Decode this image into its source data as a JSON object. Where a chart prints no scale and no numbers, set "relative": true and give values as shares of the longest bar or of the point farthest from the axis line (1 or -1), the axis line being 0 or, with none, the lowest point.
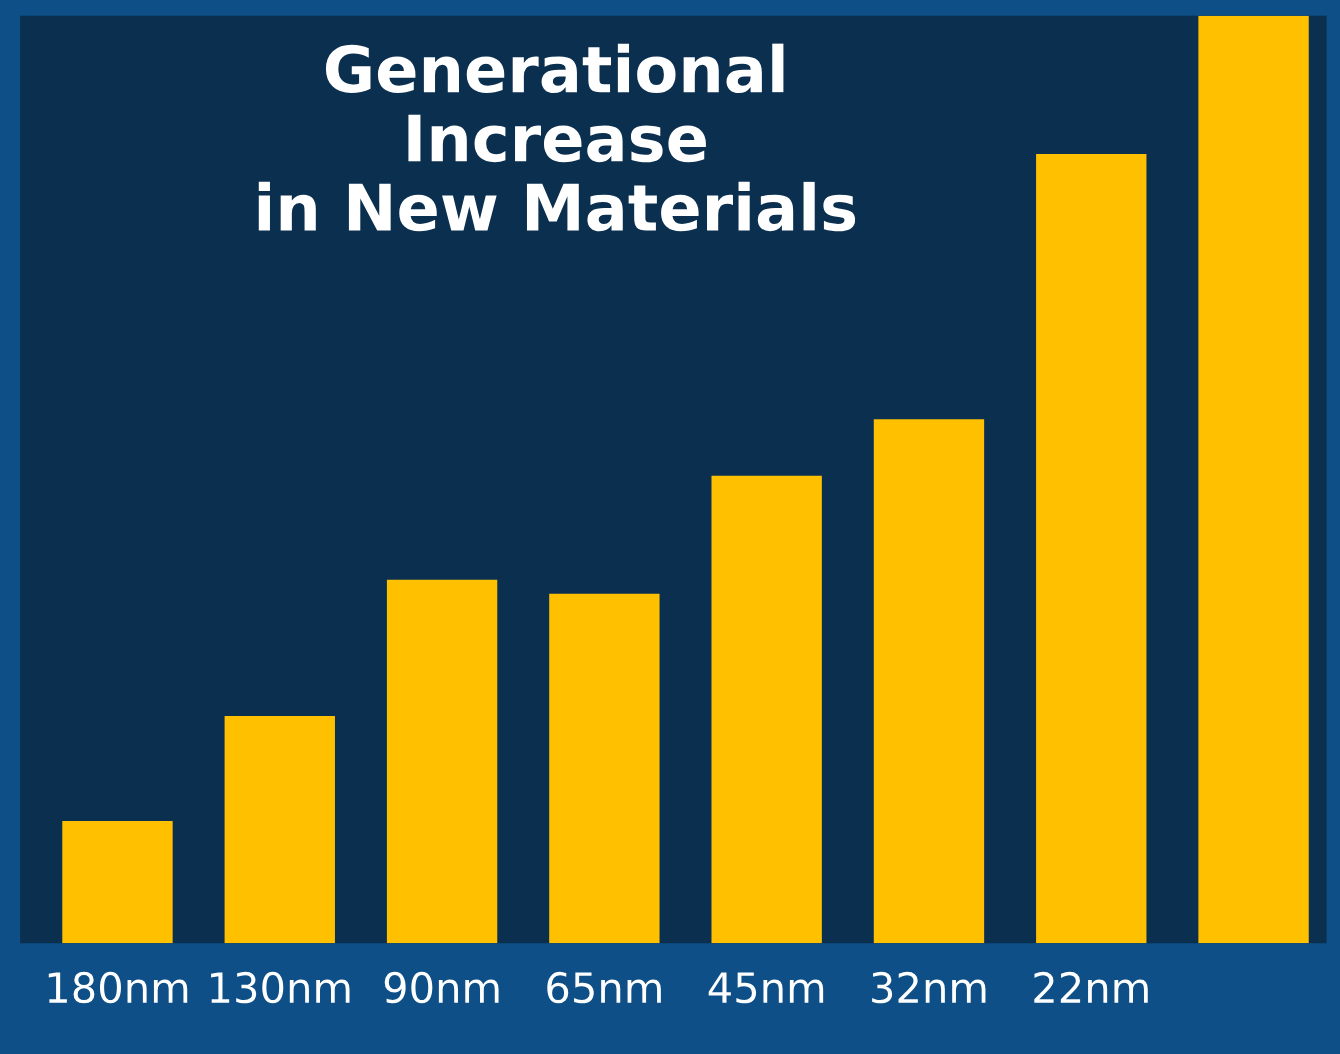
{
  "chart_data": {
    "type": "bar",
    "title": "Generational\nIncrease\nin New Materials",
    "relative": true,
    "categories": [
      "180nm",
      "130nm",
      "90nm",
      "65nm",
      "45nm",
      "32nm",
      "22nm",
      null
    ],
    "values": [
      0.132,
      0.245,
      0.392,
      0.377,
      0.504,
      0.565,
      0.851,
      1
    ],
    "color": "#ffc000"
  }
}
